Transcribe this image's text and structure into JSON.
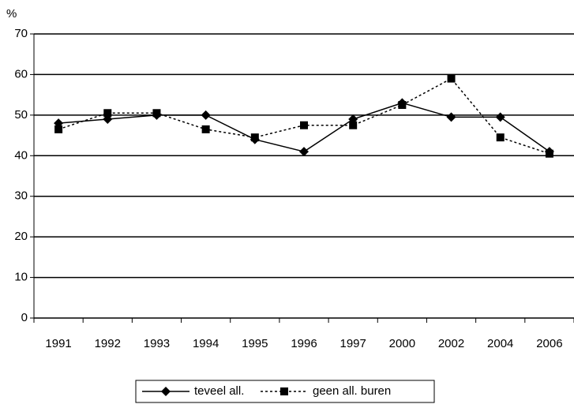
{
  "chart_data": {
    "type": "line",
    "y_label": "%",
    "categories": [
      "1991",
      "1992",
      "1993",
      "1994",
      "1995",
      "1996",
      "1997",
      "2000",
      "2002",
      "2004",
      "2006"
    ],
    "series": [
      {
        "name": "teveel all.",
        "color": "#000000",
        "marker": "diamond",
        "dash": "solid",
        "values": [
          48,
          49,
          50,
          50,
          44,
          41,
          49,
          53,
          49.5,
          49.5,
          41
        ]
      },
      {
        "name": "geen all. buren",
        "color": "#000000",
        "marker": "square",
        "dash": "dotted",
        "values": [
          46.5,
          50.5,
          50.5,
          46.5,
          44.5,
          47.5,
          47.5,
          52.5,
          59,
          44.5,
          40.5
        ]
      }
    ],
    "ylim": [
      0,
      70
    ],
    "yticks": [
      0,
      10,
      20,
      30,
      40,
      50,
      60,
      70
    ],
    "grid": true,
    "legend": "bottom"
  }
}
